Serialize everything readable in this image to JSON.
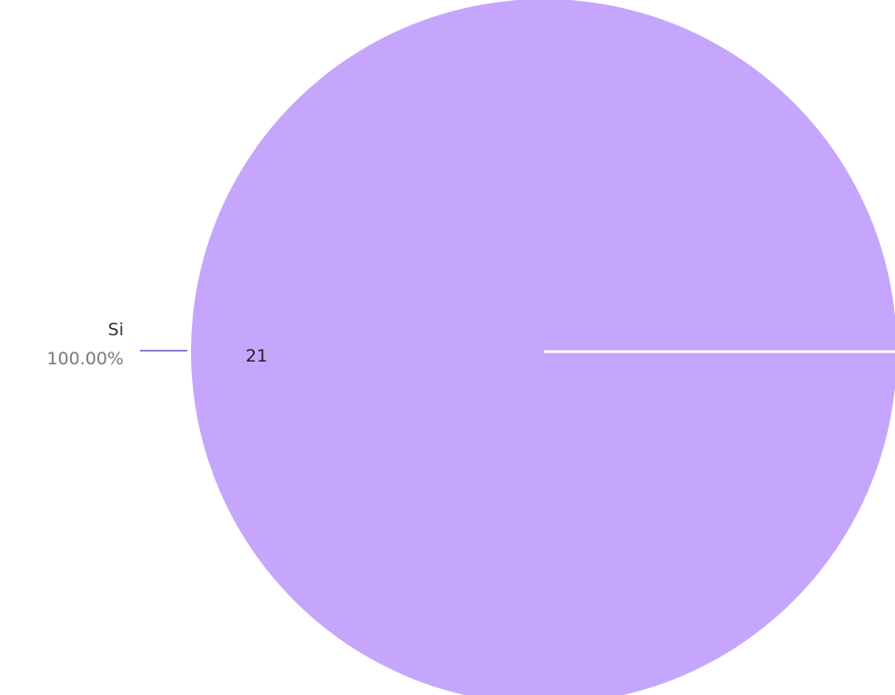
{
  "chart_data": {
    "type": "pie",
    "title": "",
    "slices": [
      {
        "label": "Si",
        "value": 21,
        "value_label": "21",
        "percent_label": "100.00%",
        "color": "#c5a6fc"
      }
    ],
    "legend": "none",
    "leader_line_color": "#8f7fd6",
    "separator_color": "#ffffff"
  }
}
